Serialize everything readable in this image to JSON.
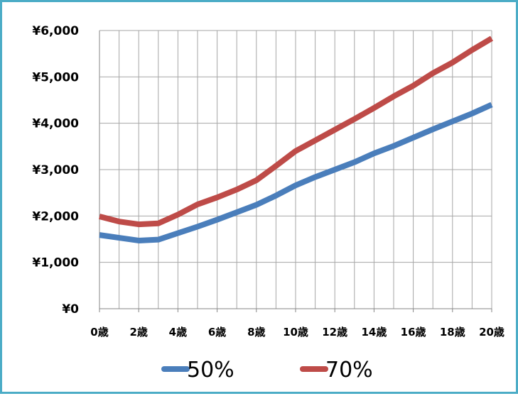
{
  "chart_data": {
    "type": "line",
    "title": "",
    "xlabel": "",
    "ylabel": "",
    "x": [
      0,
      1,
      2,
      3,
      4,
      5,
      6,
      7,
      8,
      9,
      10,
      11,
      12,
      13,
      14,
      15,
      16,
      17,
      18,
      19,
      20
    ],
    "x_tick_labels": [
      "0歳",
      "2歳",
      "4歳",
      "6歳",
      "8歳",
      "10歳",
      "12歳",
      "14歳",
      "16歳",
      "18歳",
      "20歳"
    ],
    "x_tick_values": [
      0,
      2,
      4,
      6,
      8,
      10,
      12,
      14,
      16,
      18,
      20
    ],
    "xlim": [
      0,
      20
    ],
    "y_tick_labels": [
      "¥0",
      "¥1,000",
      "¥2,000",
      "¥3,000",
      "¥4,000",
      "¥5,000",
      "¥6,000"
    ],
    "y_tick_values": [
      0,
      1000,
      2000,
      3000,
      4000,
      5000,
      6000
    ],
    "ylim": [
      0,
      6000
    ],
    "grid": true,
    "legend_position": "bottom",
    "series": [
      {
        "name": "50%",
        "color": "#4a7ebb",
        "values": [
          1590,
          1530,
          1470,
          1490,
          1630,
          1770,
          1920,
          2080,
          2240,
          2440,
          2660,
          2840,
          3000,
          3160,
          3350,
          3510,
          3690,
          3870,
          4040,
          4210,
          4400
        ]
      },
      {
        "name": "70%",
        "color": "#be4b48",
        "values": [
          1990,
          1880,
          1820,
          1840,
          2030,
          2250,
          2400,
          2570,
          2770,
          3080,
          3400,
          3630,
          3860,
          4090,
          4330,
          4580,
          4810,
          5080,
          5310,
          5580,
          5830
        ]
      }
    ]
  }
}
